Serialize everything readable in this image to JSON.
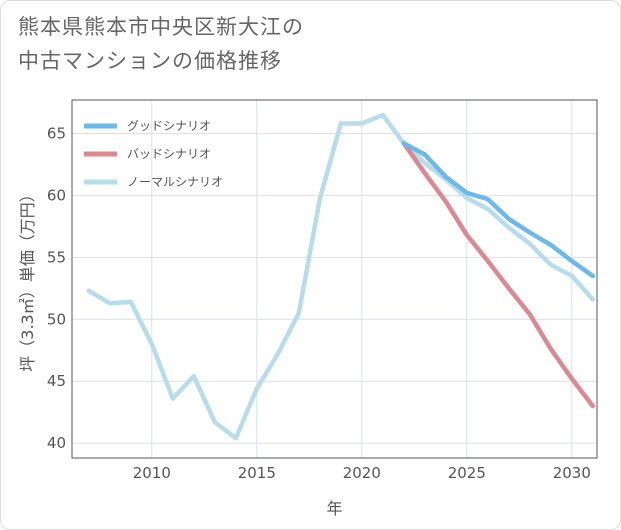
{
  "title_line1": "熊本県熊本市中央区新大江の",
  "title_line2": "中古マンションの価格推移",
  "chart_data": {
    "type": "line",
    "title": "熊本県熊本市中央区新大江の中古マンションの価格推移",
    "xlabel": "年",
    "ylabel": "坪（3.3㎡）単価（万円）",
    "xlim": [
      2006.2,
      2031.2
    ],
    "ylim": [
      38.8,
      67.7
    ],
    "xticks": [
      2010,
      2015,
      2020,
      2025,
      2030
    ],
    "yticks": [
      40,
      45,
      50,
      55,
      60,
      65
    ],
    "legend_position": "top-left",
    "series": [
      {
        "name": "グッドシナリオ",
        "color": "#6bb8ea",
        "x": [
          2022,
          2023,
          2024,
          2025,
          2026,
          2027,
          2028,
          2029,
          2030,
          2031
        ],
        "values": [
          64.2,
          63.3,
          61.5,
          60.2,
          59.7,
          58.1,
          57.0,
          56.0,
          54.7,
          53.5
        ]
      },
      {
        "name": "バッドシナリオ",
        "color": "#dc8891",
        "x": [
          2022,
          2023,
          2024,
          2025,
          2026,
          2027,
          2028,
          2029,
          2030,
          2031
        ],
        "values": [
          64.2,
          61.8,
          59.5,
          56.8,
          54.7,
          52.5,
          50.4,
          47.6,
          45.2,
          43.0
        ]
      },
      {
        "name": "ノーマルシナリオ",
        "color": "#b7dcec",
        "x": [
          2007,
          2008,
          2009,
          2010,
          2011,
          2012,
          2013,
          2014,
          2015,
          2016,
          2017,
          2018,
          2019,
          2020,
          2021,
          2022,
          2023,
          2024,
          2025,
          2026,
          2027,
          2028,
          2029,
          2030,
          2031
        ],
        "values": [
          52.3,
          51.3,
          51.4,
          48.0,
          43.6,
          45.4,
          41.7,
          40.4,
          44.4,
          47.2,
          50.5,
          59.7,
          65.8,
          65.8,
          66.5,
          64.2,
          62.6,
          61.3,
          59.8,
          58.9,
          57.4,
          56.1,
          54.4,
          53.5,
          51.6
        ]
      }
    ]
  }
}
